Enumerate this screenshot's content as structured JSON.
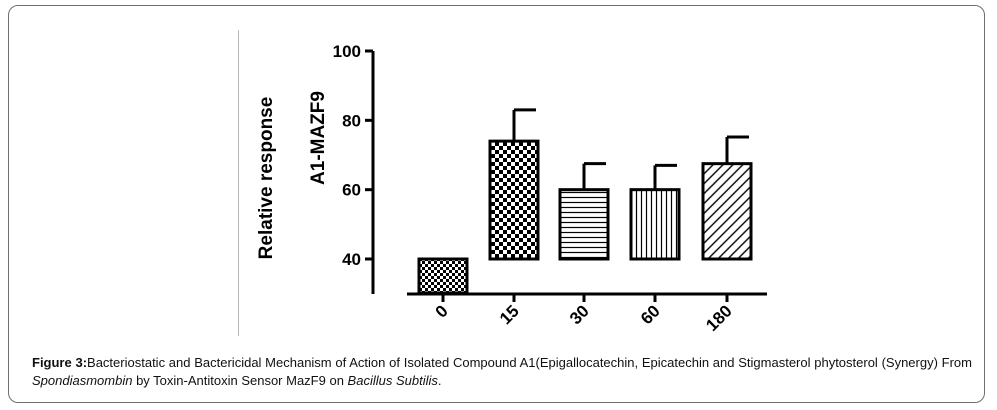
{
  "chart_data": {
    "type": "bar",
    "categories": [
      "0",
      "15",
      "30",
      "60",
      "180"
    ],
    "values": [
      40,
      74,
      60,
      60,
      67.5
    ],
    "error_upper": [
      40,
      83,
      67.5,
      67,
      75.2
    ],
    "ylabel_line1": "Relative response",
    "ylabel_line2": "A1-MAZF9",
    "ylim": [
      40,
      100
    ],
    "yticks": [
      "40",
      "60",
      "80",
      "100"
    ],
    "patterns": [
      "small-checker",
      "large-checker",
      "horizontal-lines",
      "vertical-lines",
      "diagonal-lines"
    ]
  },
  "caption": {
    "label": "Figure 3:",
    "text1": "Bacteriostatic and Bactericidal Mechanism of Action of Isolated Compound A1(Epigallocatechin, Epicatechin and Stigmasterol phytosterol (Synergy) From ",
    "italic1": "Spondiasmombin",
    "text2": " by Toxin-Antitoxin Sensor MazF9 on ",
    "italic2": "Bacillus Subtilis",
    "text3": "."
  }
}
